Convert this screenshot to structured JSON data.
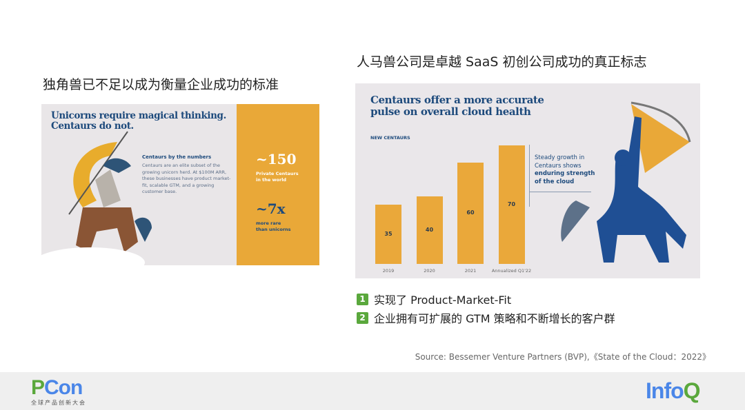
{
  "left": {
    "title": "独角兽已不足以成为衡量企业成功的标准",
    "image": {
      "headline1": "Unicorns require magical thinking.",
      "headline2": "Centaurs do not.",
      "subhead": "Centaurs by the numbers",
      "body": "Centaurs are an elite subset of the growing unicorn herd. At $100M ARR, these businesses have product market-fit, scalable GTM, and a growing customer base.",
      "stat1": "~150",
      "stat1_label1": "Private Centaurs",
      "stat1_label2": "in the world",
      "stat2": "~7x",
      "stat2_label1": "more rare",
      "stat2_label2": "than unicorns"
    }
  },
  "right": {
    "title": "人马兽公司是卓越 SaaS 初创公司成功的真正标志",
    "image": {
      "headline1": "Centaurs offer a more accurate",
      "headline2": "pulse on overall cloud health",
      "note1": "Steady growth in",
      "note2": "Centaurs shows",
      "note3": "enduring strength",
      "note4": "of the cloud"
    }
  },
  "chart_data": {
    "type": "bar",
    "title": "NEW CENTAURS",
    "categories": [
      "2019",
      "2020",
      "2021",
      "Annualized Q1'22"
    ],
    "values": [
      35,
      40,
      60,
      70
    ],
    "ylim": [
      0,
      70
    ]
  },
  "points": [
    {
      "num": "1",
      "text": "实现了  Product-Market-Fit"
    },
    {
      "num": "2",
      "text": "企业拥有可扩展的 GTM 策略和不断增长的客户群"
    }
  ],
  "source": "Source: Bessemer Venture Partners (BVP),《State of the Cloud：2022》",
  "footer": {
    "pcon_p": "P",
    "pcon_con": "Con",
    "pcon_sub": "全球产品创新大会",
    "infoq_info": "Info",
    "infoq_q": "Q"
  }
}
